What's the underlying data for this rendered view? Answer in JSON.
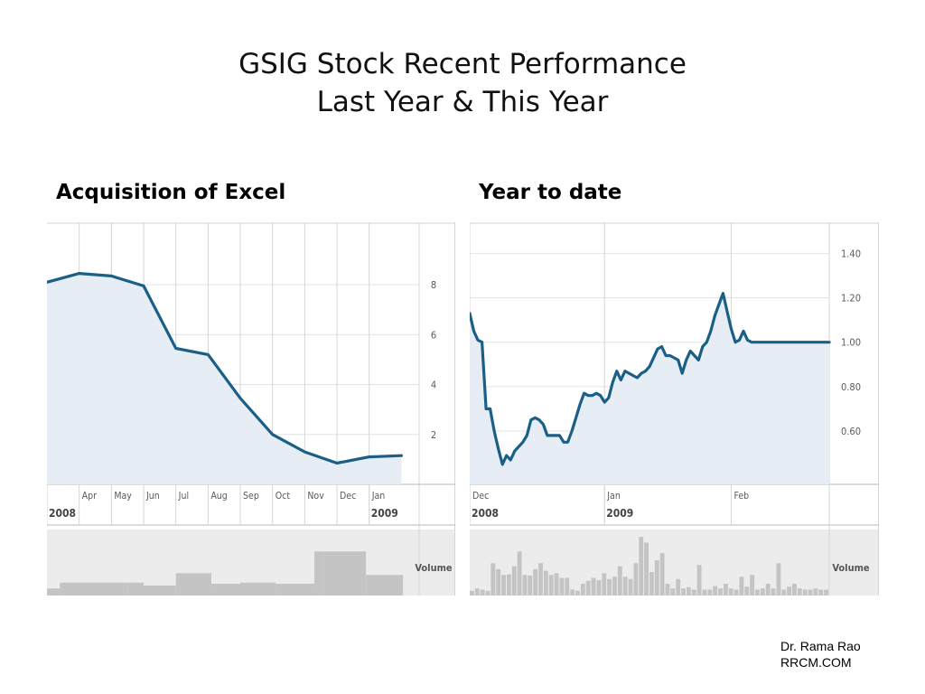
{
  "slide": {
    "title_line1": "GSIG Stock Recent Performance",
    "title_line2": "Last Year & This Year",
    "left_heading": "Acquisition of Excel",
    "right_heading": "Year to date",
    "credit_line1": "Dr. Rama Rao",
    "credit_line2": "RRCM.COM"
  },
  "colors": {
    "line": "#1b5f86",
    "area": "#e6edf5",
    "grid": "#d6d6d6",
    "volume_bar": "#c4c4c4",
    "axis_text": "#5a5a5a"
  },
  "chart_data": [
    {
      "type": "area",
      "ylim": [
        0,
        10.5
      ],
      "yticks": [
        2,
        4,
        6,
        8
      ],
      "ytick_labels": [
        "2",
        "4",
        "6",
        "8"
      ],
      "xlim": [
        2.0,
        13.55
      ],
      "xticks": [
        3,
        4,
        5,
        6,
        7,
        8,
        9,
        10,
        11,
        12
      ],
      "xtick_labels": [
        "Apr",
        "May",
        "Jun",
        "Jul",
        "Aug",
        "Sep",
        "Oct",
        "Nov",
        "Dec",
        "Jan"
      ],
      "year_labels": [
        {
          "x": 2.0,
          "label": "2008"
        },
        {
          "x": 12.0,
          "label": "2009"
        }
      ],
      "x": [
        2.0,
        3.0,
        4.0,
        5.0,
        6.0,
        7.0,
        8.0,
        9.0,
        10.0,
        11.0,
        12.0,
        13.0
      ],
      "y": [
        8.1,
        8.45,
        8.35,
        7.95,
        5.45,
        5.2,
        3.45,
        2.0,
        1.3,
        0.85,
        1.1,
        1.15
      ],
      "volume_label": "Volume",
      "volume": {
        "starts": [
          2.0,
          2.4,
          4.5,
          5.0,
          6.0,
          7.1,
          8.0,
          9.1,
          10.3,
          10.6,
          11.9
        ],
        "ends": [
          2.4,
          4.5,
          5.0,
          6.0,
          7.1,
          8.0,
          9.1,
          10.3,
          10.6,
          11.9,
          13.05
        ],
        "values": [
          0.12,
          0.22,
          0.22,
          0.17,
          0.38,
          0.2,
          0.22,
          0.2,
          0.75,
          0.75,
          0.35
        ]
      }
    },
    {
      "type": "area",
      "ylim": [
        0.36,
        1.54
      ],
      "yticks": [
        0.6,
        0.8,
        1.0,
        1.2,
        1.4
      ],
      "ytick_labels": [
        "0.60",
        "0.80",
        "1.00",
        "1.20",
        "1.40"
      ],
      "xlim": [
        0,
        88
      ],
      "xticks": [
        0,
        33,
        64
      ],
      "xtick_labels": [
        "Dec",
        "Jan",
        "Feb"
      ],
      "year_labels": [
        {
          "x": 0,
          "label": "2008"
        },
        {
          "x": 33,
          "label": "2009"
        }
      ],
      "x": [
        0,
        1,
        2,
        3,
        4,
        5,
        6,
        7,
        8,
        9,
        10,
        11,
        12,
        13,
        14,
        15,
        16,
        17,
        18,
        19,
        20,
        21,
        22,
        23,
        24,
        25,
        26,
        27,
        28,
        29,
        30,
        31,
        32,
        33,
        34,
        35,
        36,
        37,
        38,
        39,
        40,
        41,
        42,
        43,
        44,
        45,
        46,
        47,
        48,
        49,
        50,
        51,
        52,
        53,
        54,
        55,
        56,
        57,
        58,
        59,
        60,
        61,
        62,
        63,
        64,
        65,
        66,
        67,
        68,
        69,
        70,
        71,
        72,
        73,
        74,
        75,
        76,
        77,
        78,
        79,
        80,
        81,
        82,
        83,
        84,
        85,
        86,
        87,
        88
      ],
      "y": [
        1.13,
        1.05,
        1.01,
        1.0,
        0.7,
        0.7,
        0.6,
        0.52,
        0.45,
        0.49,
        0.47,
        0.51,
        0.53,
        0.55,
        0.58,
        0.65,
        0.66,
        0.65,
        0.63,
        0.58,
        0.58,
        0.58,
        0.58,
        0.55,
        0.55,
        0.6,
        0.66,
        0.72,
        0.77,
        0.76,
        0.76,
        0.77,
        0.76,
        0.73,
        0.75,
        0.82,
        0.87,
        0.83,
        0.87,
        0.86,
        0.85,
        0.84,
        0.86,
        0.87,
        0.89,
        0.93,
        0.97,
        0.98,
        0.94,
        0.94,
        0.93,
        0.92,
        0.86,
        0.92,
        0.96,
        0.94,
        0.92,
        0.98,
        1.0,
        1.05,
        1.12,
        1.17,
        1.22,
        1.14,
        1.06,
        1.0,
        1.01,
        1.05,
        1.01,
        1.0,
        1.0,
        1.0,
        1.0,
        1.0,
        1.0,
        1.0,
        1.0,
        1.0,
        1.0,
        1.0,
        1.0,
        1.0,
        1.0,
        1.0,
        1.0,
        1.0,
        1.0,
        1.0,
        1.0
      ],
      "volume_label": "Volume",
      "volume_values": [
        0.08,
        0.12,
        0.1,
        0.08,
        0.55,
        0.45,
        0.35,
        0.36,
        0.5,
        0.75,
        0.35,
        0.34,
        0.45,
        0.55,
        0.42,
        0.35,
        0.38,
        0.3,
        0.3,
        0.1,
        0.08,
        0.2,
        0.25,
        0.3,
        0.26,
        0.38,
        0.28,
        0.32,
        0.5,
        0.32,
        0.28,
        0.55,
        1.0,
        0.9,
        0.4,
        0.6,
        0.72,
        0.2,
        0.12,
        0.28,
        0.12,
        0.14,
        0.1,
        0.52,
        0.1,
        0.1,
        0.16,
        0.12,
        0.2,
        0.12,
        0.1,
        0.32,
        0.15,
        0.35,
        0.1,
        0.12,
        0.2,
        0.12,
        0.55,
        0.1,
        0.15,
        0.2,
        0.12,
        0.1,
        0.1,
        0.12,
        0.1,
        0.1
      ]
    }
  ]
}
